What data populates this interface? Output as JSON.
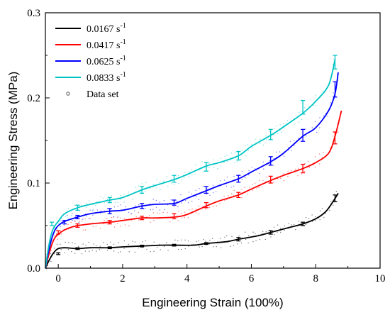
{
  "chart_data": {
    "type": "line",
    "xlabel": "Engineering Strain (100%)",
    "ylabel": "Engineering Stress (MPa)",
    "xlim": [
      -0.4,
      10
    ],
    "ylim": [
      0,
      0.3
    ],
    "xticks": [
      0,
      2,
      4,
      6,
      8,
      10
    ],
    "yticks": [
      0.0,
      0.1,
      0.2,
      0.3
    ],
    "xtick_labels": [
      "0",
      "2",
      "4",
      "6",
      "8",
      "10"
    ],
    "ytick_labels": [
      "0.0",
      "0.1",
      "0.2",
      "0.3"
    ],
    "grid": false,
    "legend_position": "top-left",
    "series": [
      {
        "name": "0.0167",
        "unit": "s",
        "unit_exp": "-1",
        "color": "#000000",
        "x": [
          -0.4,
          -0.3,
          -0.2,
          -0.1,
          0.0,
          0.2,
          0.6,
          1.0,
          1.6,
          2.0,
          2.6,
          3.2,
          3.6,
          4.2,
          4.6,
          5.2,
          5.6,
          6.2,
          6.6,
          7.2,
          7.6,
          8.0,
          8.3,
          8.5,
          8.7
        ],
        "values": [
          0.0,
          0.008,
          0.015,
          0.02,
          0.023,
          0.024,
          0.023,
          0.024,
          0.024,
          0.025,
          0.026,
          0.027,
          0.027,
          0.027,
          0.029,
          0.031,
          0.034,
          0.038,
          0.042,
          0.048,
          0.052,
          0.058,
          0.066,
          0.076,
          0.088
        ],
        "error_bars": [
          {
            "x": 0.0,
            "y": 0.017,
            "err": 0.001
          },
          {
            "x": 0.6,
            "y": 0.023,
            "err": 0.001
          },
          {
            "x": 1.6,
            "y": 0.024,
            "err": 0.001
          },
          {
            "x": 2.6,
            "y": 0.026,
            "err": 0.001
          },
          {
            "x": 3.6,
            "y": 0.027,
            "err": 0.001
          },
          {
            "x": 4.6,
            "y": 0.029,
            "err": 0.001
          },
          {
            "x": 5.6,
            "y": 0.034,
            "err": 0.002
          },
          {
            "x": 6.6,
            "y": 0.042,
            "err": 0.002
          },
          {
            "x": 7.6,
            "y": 0.052,
            "err": 0.002
          },
          {
            "x": 8.6,
            "y": 0.082,
            "err": 0.004
          }
        ]
      },
      {
        "name": "0.0417",
        "unit": "s",
        "unit_exp": "-1",
        "color": "#ff0000",
        "x": [
          -0.4,
          -0.3,
          -0.2,
          -0.1,
          0.0,
          0.2,
          0.4,
          0.6,
          1.0,
          1.6,
          2.0,
          2.6,
          3.0,
          3.6,
          4.0,
          4.6,
          5.0,
          5.6,
          6.0,
          6.6,
          7.0,
          7.6,
          8.0,
          8.4,
          8.6,
          8.8
        ],
        "values": [
          0.0,
          0.015,
          0.028,
          0.036,
          0.04,
          0.045,
          0.048,
          0.05,
          0.052,
          0.054,
          0.056,
          0.059,
          0.059,
          0.06,
          0.063,
          0.073,
          0.079,
          0.086,
          0.093,
          0.103,
          0.109,
          0.117,
          0.124,
          0.135,
          0.155,
          0.185
        ],
        "error_bars": [
          {
            "x": 0.0,
            "y": 0.042,
            "err": 0.002
          },
          {
            "x": 0.6,
            "y": 0.05,
            "err": 0.002
          },
          {
            "x": 1.6,
            "y": 0.054,
            "err": 0.002
          },
          {
            "x": 2.6,
            "y": 0.059,
            "err": 0.002
          },
          {
            "x": 3.6,
            "y": 0.061,
            "err": 0.003
          },
          {
            "x": 4.6,
            "y": 0.074,
            "err": 0.003
          },
          {
            "x": 5.6,
            "y": 0.086,
            "err": 0.003
          },
          {
            "x": 6.6,
            "y": 0.104,
            "err": 0.004
          },
          {
            "x": 7.6,
            "y": 0.117,
            "err": 0.005
          },
          {
            "x": 8.6,
            "y": 0.153,
            "err": 0.007
          }
        ]
      },
      {
        "name": "0.0625",
        "unit": "s",
        "unit_exp": "-1",
        "color": "#0000ff",
        "x": [
          -0.4,
          -0.3,
          -0.2,
          -0.1,
          0.0,
          0.2,
          0.6,
          1.0,
          1.6,
          2.0,
          2.6,
          3.0,
          3.6,
          4.0,
          4.6,
          5.0,
          5.6,
          6.0,
          6.6,
          7.0,
          7.6,
          8.0,
          8.4,
          8.6,
          8.7
        ],
        "values": [
          0.0,
          0.02,
          0.035,
          0.045,
          0.05,
          0.055,
          0.06,
          0.064,
          0.067,
          0.068,
          0.073,
          0.075,
          0.076,
          0.082,
          0.091,
          0.097,
          0.105,
          0.113,
          0.125,
          0.135,
          0.155,
          0.165,
          0.185,
          0.205,
          0.23
        ],
        "error_bars": [
          {
            "x": 0.2,
            "y": 0.054,
            "err": 0.002
          },
          {
            "x": 0.6,
            "y": 0.06,
            "err": 0.002
          },
          {
            "x": 1.6,
            "y": 0.067,
            "err": 0.003
          },
          {
            "x": 2.6,
            "y": 0.073,
            "err": 0.003
          },
          {
            "x": 3.6,
            "y": 0.077,
            "err": 0.003
          },
          {
            "x": 4.6,
            "y": 0.092,
            "err": 0.004
          },
          {
            "x": 5.6,
            "y": 0.105,
            "err": 0.004
          },
          {
            "x": 6.6,
            "y": 0.126,
            "err": 0.005
          },
          {
            "x": 7.6,
            "y": 0.156,
            "err": 0.007
          },
          {
            "x": 8.6,
            "y": 0.21,
            "err": 0.009
          }
        ]
      },
      {
        "name": "0.0833",
        "unit": "s",
        "unit_exp": "-1",
        "color": "#00c4c4",
        "x": [
          -0.4,
          -0.3,
          -0.2,
          -0.1,
          0.0,
          0.2,
          0.6,
          1.0,
          1.6,
          2.0,
          2.6,
          3.0,
          3.6,
          4.0,
          4.6,
          5.0,
          5.6,
          6.0,
          6.6,
          7.0,
          7.6,
          8.0,
          8.4,
          8.6
        ],
        "values": [
          0.0,
          0.025,
          0.042,
          0.05,
          0.055,
          0.064,
          0.071,
          0.075,
          0.08,
          0.083,
          0.092,
          0.097,
          0.104,
          0.11,
          0.12,
          0.124,
          0.132,
          0.143,
          0.156,
          0.166,
          0.182,
          0.196,
          0.215,
          0.245
        ],
        "error_bars": [
          {
            "x": -0.2,
            "y": 0.052,
            "err": 0.002
          },
          {
            "x": 0.6,
            "y": 0.071,
            "err": 0.003
          },
          {
            "x": 1.6,
            "y": 0.08,
            "err": 0.003
          },
          {
            "x": 2.6,
            "y": 0.092,
            "err": 0.004
          },
          {
            "x": 3.6,
            "y": 0.105,
            "err": 0.004
          },
          {
            "x": 4.6,
            "y": 0.119,
            "err": 0.005
          },
          {
            "x": 5.6,
            "y": 0.132,
            "err": 0.005
          },
          {
            "x": 6.6,
            "y": 0.157,
            "err": 0.006
          },
          {
            "x": 7.6,
            "y": 0.189,
            "err": 0.008
          },
          {
            "x": 8.6,
            "y": 0.242,
            "err": 0.008
          }
        ]
      }
    ],
    "data_set_label": "Data set"
  }
}
